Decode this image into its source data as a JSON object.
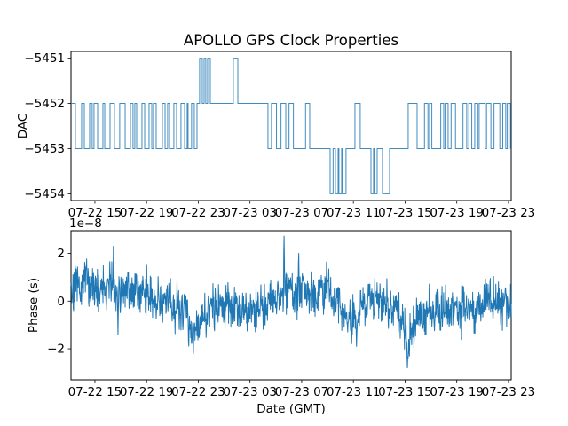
{
  "figure": {
    "title": "APOLLO GPS Clock Properties",
    "background": "#ffffff"
  },
  "colors": {
    "line": "#1f77b4",
    "text": "#000000",
    "spine": "#000000"
  },
  "x_axis": {
    "label": "Date (GMT)",
    "unit": "hours since 07-22 00:00",
    "range_hours": [
      13.15,
      47.21
    ],
    "tick_hours": [
      15,
      19,
      23,
      27,
      31,
      35,
      39,
      43,
      47
    ],
    "tick_labels": [
      "07-22 15",
      "07-22 19",
      "07-22 23",
      "07-23 03",
      "07-23 07",
      "07-23 11",
      "07-23 15",
      "07-23 19",
      "07-23 23"
    ]
  },
  "chart_data": [
    {
      "type": "line",
      "style": "step",
      "title": "APOLLO GPS Clock Properties",
      "ylabel": "DAC",
      "xlabel": "",
      "ylim": [
        -5454.15,
        -5450.85
      ],
      "yticks": [
        -5451,
        -5452,
        -5453,
        -5454
      ],
      "ytick_labels": [
        "−5451",
        "−5452",
        "−5453",
        "−5454"
      ],
      "grid": false,
      "legend": "none",
      "series": [
        {
          "name": "DAC",
          "start_hour": 13.15,
          "start_value": -5452,
          "transitions": [
            [
              13.49,
              -5453
            ],
            [
              13.97,
              -5452
            ],
            [
              14.18,
              -5453
            ],
            [
              14.59,
              -5452
            ],
            [
              14.79,
              -5453
            ],
            [
              14.93,
              -5452
            ],
            [
              15.21,
              -5453
            ],
            [
              15.62,
              -5452
            ],
            [
              15.76,
              -5453
            ],
            [
              16.17,
              -5452
            ],
            [
              16.51,
              -5453
            ],
            [
              16.92,
              -5452
            ],
            [
              17.34,
              -5453
            ],
            [
              17.75,
              -5452
            ],
            [
              17.95,
              -5453
            ],
            [
              18.09,
              -5452
            ],
            [
              18.23,
              -5453
            ],
            [
              18.64,
              -5452
            ],
            [
              18.85,
              -5453
            ],
            [
              19.19,
              -5452
            ],
            [
              19.4,
              -5453
            ],
            [
              19.53,
              -5452
            ],
            [
              19.74,
              -5453
            ],
            [
              20.22,
              -5452
            ],
            [
              20.43,
              -5453
            ],
            [
              20.63,
              -5452
            ],
            [
              20.77,
              -5453
            ],
            [
              21.11,
              -5452
            ],
            [
              21.32,
              -5453
            ],
            [
              21.66,
              -5452
            ],
            [
              21.94,
              -5453
            ],
            [
              22.14,
              -5452
            ],
            [
              22.21,
              -5453
            ],
            [
              22.48,
              -5452
            ],
            [
              22.69,
              -5453
            ],
            [
              22.9,
              -5452
            ],
            [
              23.1,
              -5451
            ],
            [
              23.31,
              -5452
            ],
            [
              23.45,
              -5451
            ],
            [
              23.58,
              -5452
            ],
            [
              23.72,
              -5451
            ],
            [
              23.93,
              -5452
            ],
            [
              25.71,
              -5451
            ],
            [
              26.06,
              -5452
            ],
            [
              28.39,
              -5453
            ],
            [
              28.66,
              -5452
            ],
            [
              29.05,
              -5453
            ],
            [
              29.4,
              -5452
            ],
            [
              29.77,
              -5453
            ],
            [
              30.02,
              -5452
            ],
            [
              30.36,
              -5453
            ],
            [
              31.3,
              -5452
            ],
            [
              31.62,
              -5453
            ],
            [
              33.2,
              -5454
            ],
            [
              33.43,
              -5453
            ],
            [
              33.61,
              -5454
            ],
            [
              33.82,
              -5453
            ],
            [
              33.88,
              -5454
            ],
            [
              34.09,
              -5453
            ],
            [
              34.16,
              -5454
            ],
            [
              34.43,
              -5453
            ],
            [
              35.12,
              -5452
            ],
            [
              35.53,
              -5453
            ],
            [
              36.36,
              -5454
            ],
            [
              36.56,
              -5453
            ],
            [
              36.63,
              -5454
            ],
            [
              36.84,
              -5453
            ],
            [
              37.25,
              -5454
            ],
            [
              37.8,
              -5453
            ],
            [
              39.24,
              -5452
            ],
            [
              39.93,
              -5453
            ],
            [
              40.5,
              -5452
            ],
            [
              40.77,
              -5453
            ],
            [
              40.89,
              -5452
            ],
            [
              41.07,
              -5453
            ],
            [
              41.76,
              -5452
            ],
            [
              41.99,
              -5453
            ],
            [
              42.1,
              -5452
            ],
            [
              42.33,
              -5453
            ],
            [
              42.56,
              -5452
            ],
            [
              42.9,
              -5453
            ],
            [
              43.48,
              -5452
            ],
            [
              43.77,
              -5453
            ],
            [
              43.93,
              -5452
            ],
            [
              44.16,
              -5453
            ],
            [
              44.39,
              -5452
            ],
            [
              44.62,
              -5453
            ],
            [
              44.73,
              -5452
            ],
            [
              45.19,
              -5453
            ],
            [
              45.3,
              -5452
            ],
            [
              45.64,
              -5453
            ],
            [
              45.88,
              -5452
            ],
            [
              46.33,
              -5453
            ],
            [
              46.56,
              -5452
            ],
            [
              46.79,
              -5453
            ],
            [
              46.91,
              -5452
            ],
            [
              47.16,
              -5453
            ]
          ]
        }
      ]
    },
    {
      "type": "line",
      "style": "noisy",
      "ylabel": "Phase (s)",
      "xlabel": "Date (GMT)",
      "offset_text": "1e−8",
      "y_unit": "1e-8 s",
      "ylim_1e8": [
        -3.3,
        2.95
      ],
      "yticks_1e8": [
        2,
        0,
        -2
      ],
      "ytick_labels": [
        "2",
        "0",
        "−2"
      ],
      "grid": false,
      "legend": "none",
      "n_points": 1350,
      "seed": 20,
      "noise_sigma_1e8": 0.42,
      "trend_1e8": [
        [
          13.15,
          0.55
        ],
        [
          14.2,
          0.8
        ],
        [
          15.2,
          0.5
        ],
        [
          16.2,
          0.55
        ],
        [
          17.3,
          0.4
        ],
        [
          18.3,
          0.5
        ],
        [
          19.3,
          0.25
        ],
        [
          20.4,
          0.0
        ],
        [
          21.4,
          -0.25
        ],
        [
          22.1,
          -0.55
        ],
        [
          22.6,
          -1.3
        ],
        [
          23.3,
          -0.7
        ],
        [
          24.1,
          -0.15
        ],
        [
          25.2,
          -0.1
        ],
        [
          26.2,
          -0.35
        ],
        [
          27.2,
          -0.4
        ],
        [
          28.2,
          -0.1
        ],
        [
          29.2,
          0.1
        ],
        [
          29.63,
          0.5
        ],
        [
          30.3,
          0.3
        ],
        [
          31.0,
          0.35
        ],
        [
          31.8,
          0.3
        ],
        [
          32.7,
          0.55
        ],
        [
          33.2,
          0.5
        ],
        [
          33.95,
          -0.2
        ],
        [
          34.4,
          -0.8
        ],
        [
          35.3,
          -0.85
        ],
        [
          35.8,
          -0.1
        ],
        [
          36.3,
          0.2
        ],
        [
          37.0,
          0.1
        ],
        [
          37.7,
          -0.1
        ],
        [
          38.4,
          -0.45
        ],
        [
          38.9,
          -1.0
        ],
        [
          39.17,
          -2.0
        ],
        [
          39.5,
          -1.2
        ],
        [
          39.95,
          -0.6
        ],
        [
          40.5,
          -0.5
        ],
        [
          41.3,
          -0.45
        ],
        [
          42.3,
          -0.35
        ],
        [
          43.4,
          -0.3
        ],
        [
          44.4,
          -0.25
        ],
        [
          45.4,
          -0.1
        ],
        [
          46.2,
          -0.1
        ],
        [
          46.8,
          -0.2
        ],
        [
          47.21,
          -0.3
        ]
      ],
      "spikes_1e8": [
        [
          16.44,
          2.3
        ],
        [
          16.78,
          -1.4
        ],
        [
          22.62,
          -2.2
        ],
        [
          29.63,
          2.72
        ],
        [
          30.78,
          2.0
        ],
        [
          35.25,
          -1.9
        ],
        [
          39.17,
          -2.8
        ]
      ]
    }
  ]
}
